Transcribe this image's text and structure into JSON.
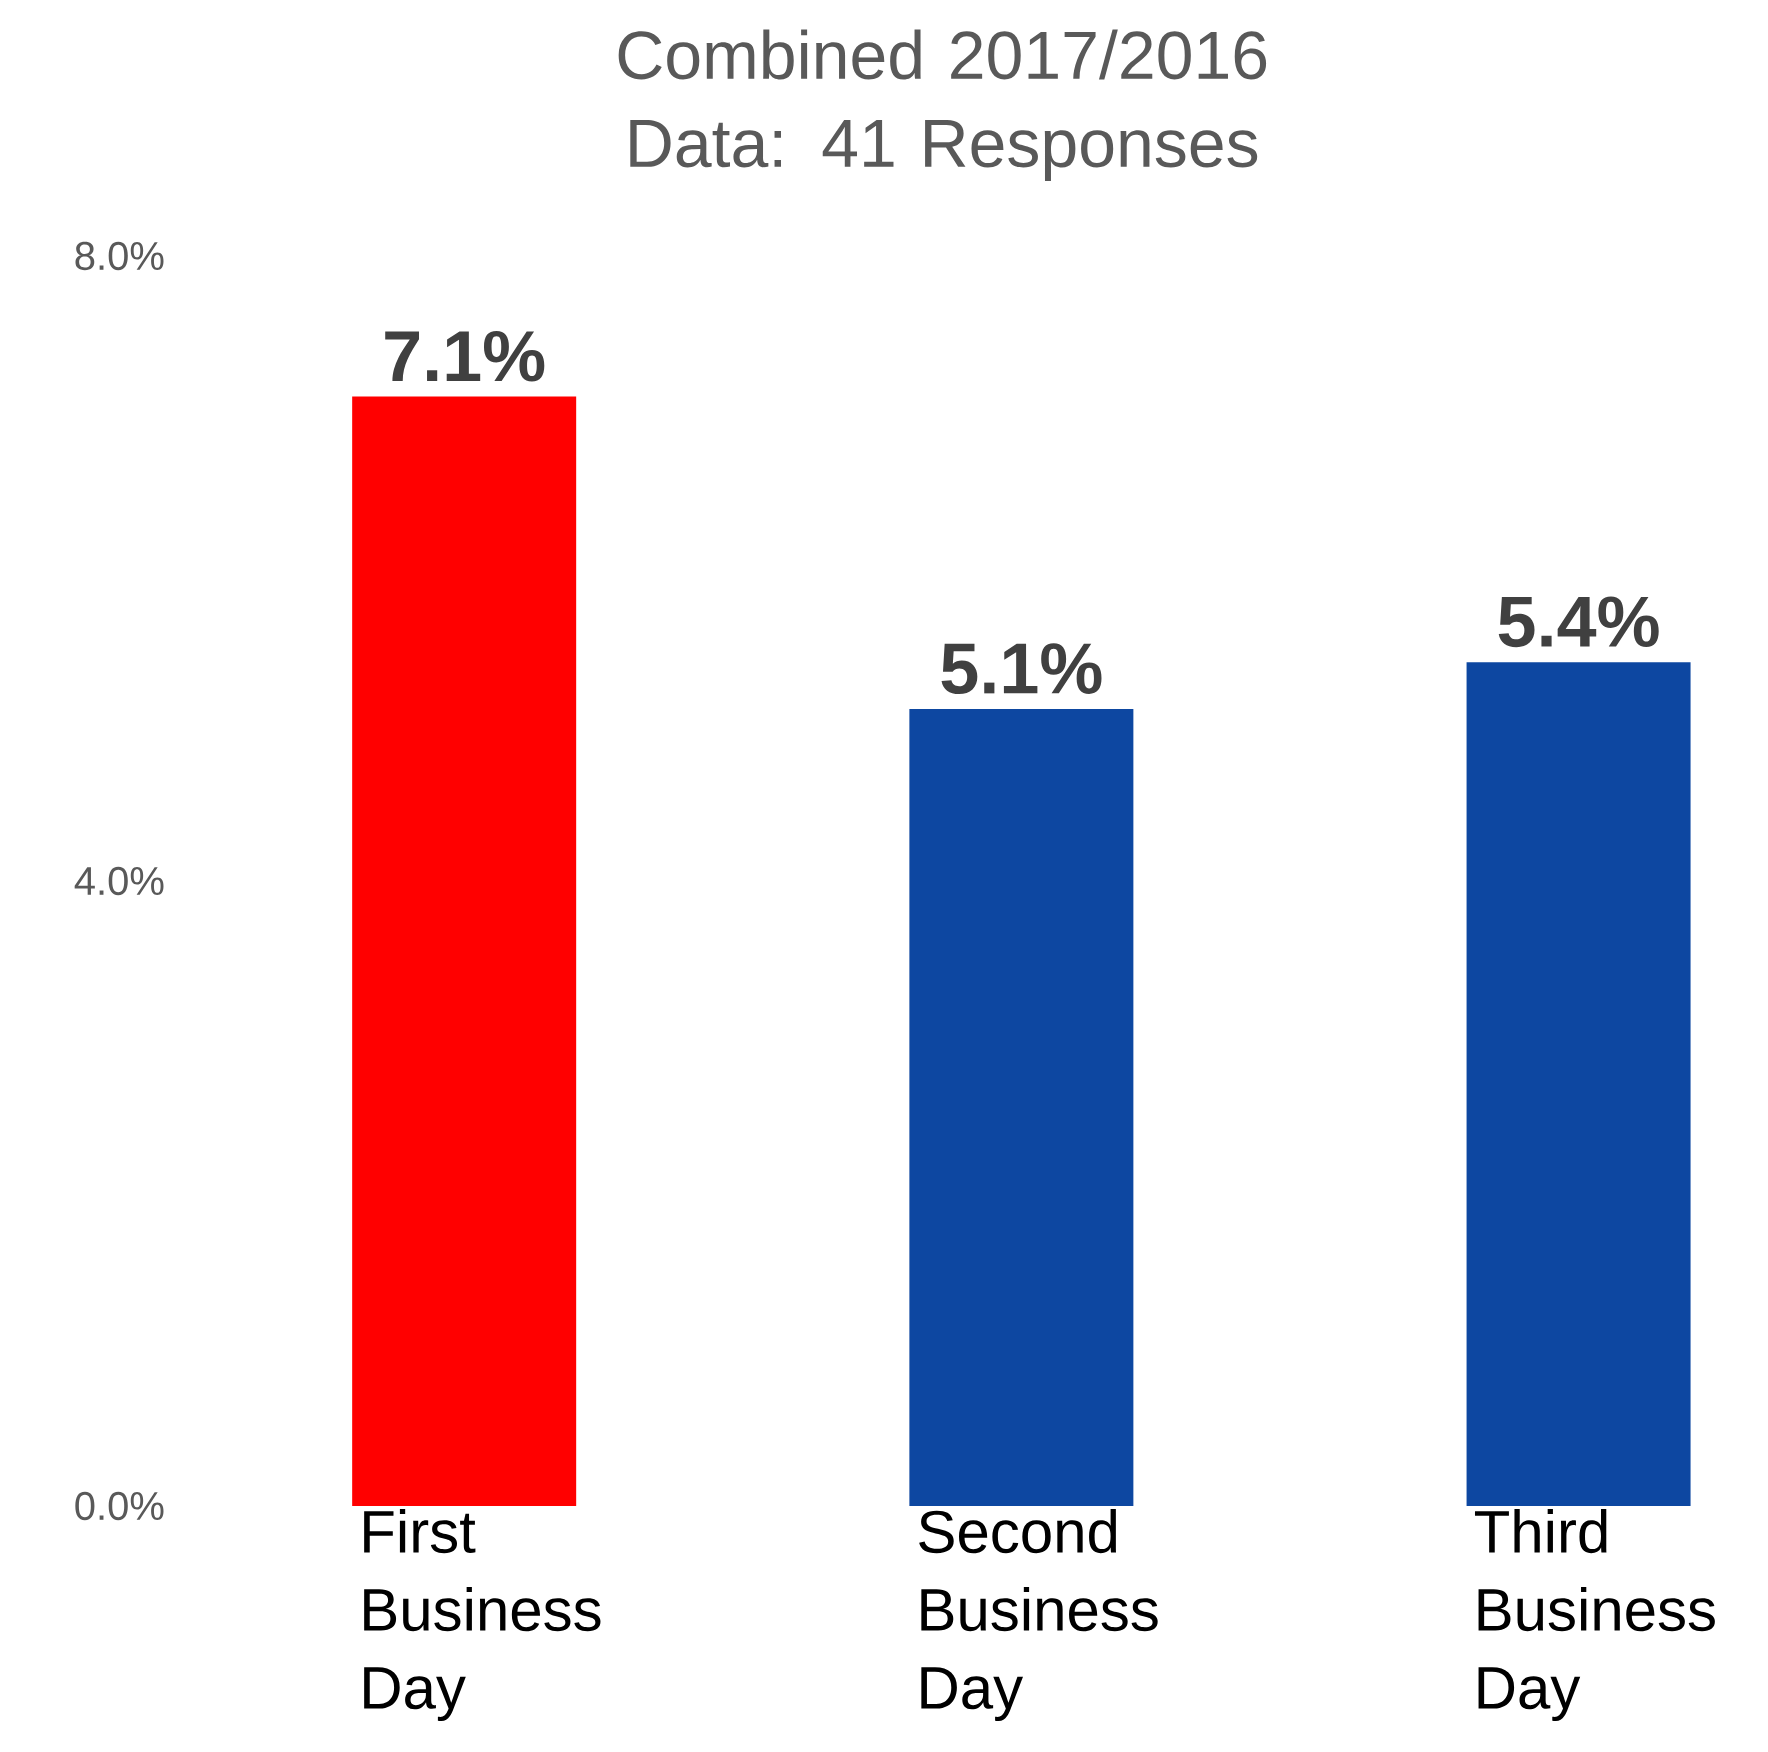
{
  "chart_data": {
    "type": "bar",
    "title": "Combined 2017/2016 Data: 41 Responses",
    "categories": [
      "First Business Day",
      "Second Business Day",
      "Third Business Day"
    ],
    "values": [
      7.1,
      5.1,
      5.4
    ],
    "colors": [
      "#ff0000",
      "#0d47a1",
      "#0d47a1"
    ],
    "value_labels": [
      "7.1%",
      "5.1%",
      "5.4%"
    ],
    "ylim": [
      0,
      8
    ],
    "yticks": [
      {
        "value": 0,
        "label": "0.0%"
      },
      {
        "value": 4,
        "label": "4.0%"
      },
      {
        "value": 8,
        "label": "8.0%"
      }
    ],
    "grid": false,
    "legend": false
  }
}
